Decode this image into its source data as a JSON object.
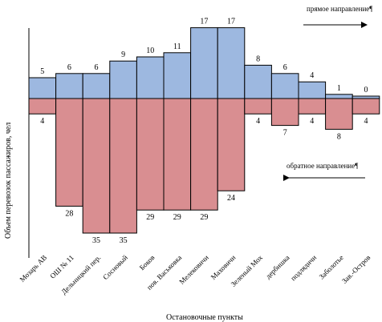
{
  "chart_data": {
    "type": "bar",
    "xlabel": "Остановочные пункты",
    "ylabel": "Объем перевозок пассажиров, чел",
    "categories": [
      "Мозарь АВ",
      "ОШ № 11",
      "Дельницкий пер.",
      "Сосновый",
      "Боков",
      "пов. Васьковка",
      "Мелековичи",
      "Маховичи",
      "Зеленый Мох",
      "дербишка",
      "подлядичи",
      "Заболотье",
      "Зав.-Остров"
    ],
    "series": [
      {
        "name": "прямое направление¶",
        "values": [
          5,
          6,
          6,
          9,
          10,
          11,
          17,
          17,
          8,
          6,
          4,
          1,
          0
        ],
        "color": "#9db8e0"
      },
      {
        "name": "обратное направление¶",
        "values": [
          4,
          28,
          35,
          35,
          29,
          29,
          29,
          24,
          4,
          7,
          4,
          8,
          4
        ],
        "color": "#d98e91"
      }
    ]
  }
}
